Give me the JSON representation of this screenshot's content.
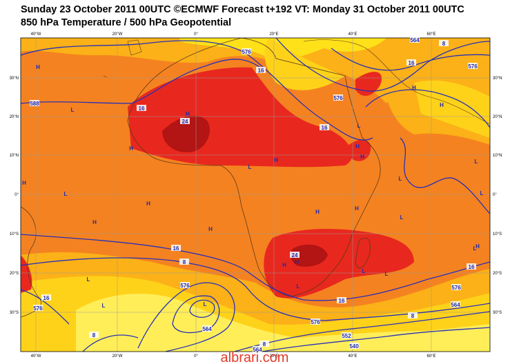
{
  "header": {
    "line1": "Sunday 23 October 2011 00UTC ©ECMWF Forecast t+192 VT: Monday 31 October 2011 00UTC",
    "line2": "850 hPa Temperature / 500 hPa Geopotential"
  },
  "map": {
    "x_labels": [
      "40°W",
      "20°W",
      "0°",
      "20°E",
      "40°E",
      "60°E"
    ],
    "y_labels": [
      "30°N",
      "20°N",
      "10°N",
      "0°",
      "10°S",
      "20°S",
      "30°S"
    ],
    "contour_labels": [
      "588",
      "16",
      "24",
      "576",
      "16",
      "16",
      "576",
      "16",
      "8",
      "564",
      "576",
      "16",
      "8",
      "576",
      "24",
      "16",
      "16",
      "576",
      "564",
      "8",
      "576",
      "564",
      "552",
      "540",
      "8",
      "564",
      "16",
      "576",
      "8"
    ],
    "pressure_marks": [
      "H",
      "L",
      "H",
      "H",
      "L",
      "H",
      "L",
      "H",
      "H",
      "L",
      "H",
      "H",
      "L",
      "L",
      "H",
      "H",
      "L",
      "H",
      "L",
      "L",
      "H",
      "L",
      "H",
      "H",
      "L",
      "L",
      "L",
      "H",
      "L",
      "L",
      "H",
      "H"
    ]
  },
  "watermark": "albrari.com"
}
